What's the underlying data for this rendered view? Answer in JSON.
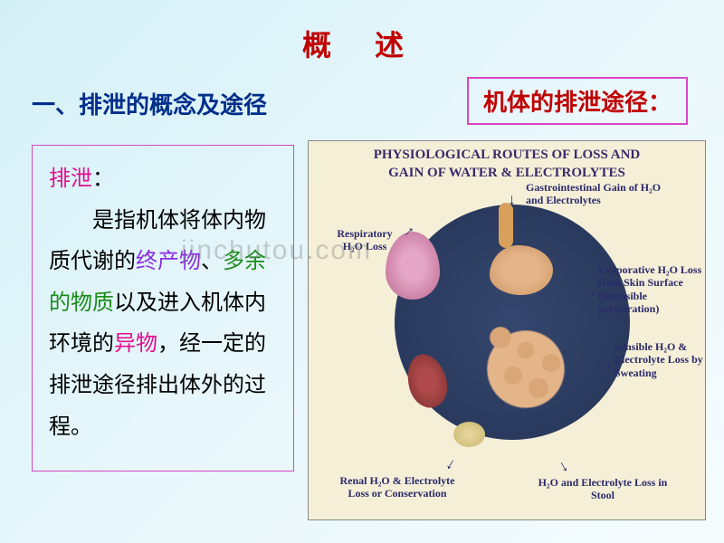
{
  "title": "概  述",
  "section_header": "一、排泄的概念及途径",
  "route_box": "机体的排泄途径：",
  "definition": {
    "term": "排泄",
    "colon": "：",
    "body_prefix": "是指机体将体内物质代谢的",
    "end_product": "终产物",
    "sep1": "、",
    "excess": "多余的物质",
    "mid": "以及进入机体内环境的",
    "foreign": "异物",
    "tail": "，经一定的排泄途径排出体外的过程。"
  },
  "figure": {
    "title_line1": "PHYSIOLOGICAL ROUTES OF LOSS AND",
    "title_line2": "GAIN OF WATER & ELECTROLYTES",
    "labels": {
      "gi": "Gastrointestinal Gain of H₂O and Electrolytes",
      "resp": "Respiratory H₂O Loss",
      "evap": "Evaporative H₂O Loss from Skin Surface (insensible perspiration)",
      "sweat": "Sensible H₂O & Electrolyte Loss by Sweating",
      "renal": "Renal H₂O & Electrolyte Loss or Conservation",
      "stool": "H₂O and Electrolyte Loss in Stool"
    }
  },
  "watermark": "jinchutou.com",
  "colors": {
    "title_red": "#c00000",
    "header_blue": "#002e8a",
    "term_pink": "#e20f8f",
    "purple": "#8a2be2",
    "green": "#1a8c1a",
    "box_border": "#d946c5",
    "fig_bg": "#f5efd8",
    "circle": "#2a3a5e",
    "label_color": "#2a2a6a"
  },
  "typography": {
    "title_fontsize": 32,
    "section_fontsize": 26,
    "route_fontsize": 26,
    "body_fontsize": 24,
    "fig_title_fontsize": 15,
    "label_fontsize": 12
  }
}
